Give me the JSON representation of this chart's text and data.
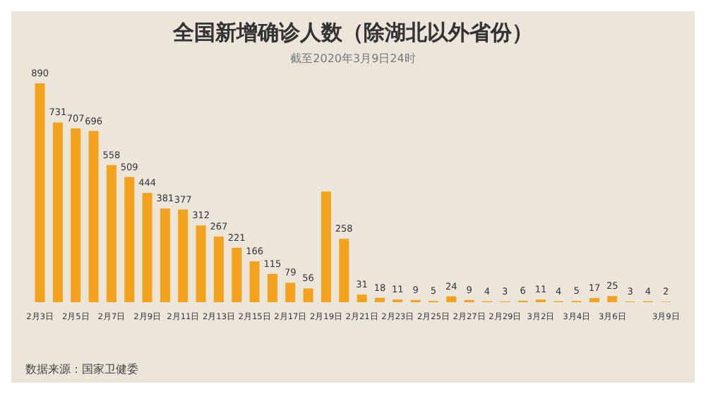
{
  "chart_data": {
    "type": "bar",
    "title": "全国新增确诊人数（除湖北以外省份）",
    "subtitle": "截至2020年3月9日24时",
    "categories": [
      "2月3日",
      null,
      "2月5日",
      null,
      "2月7日",
      null,
      "2月9日",
      null,
      "2月11日",
      null,
      "2月13日",
      null,
      "2月15日",
      null,
      "2月17日",
      null,
      "2月19日",
      null,
      "2月21日",
      null,
      "2月23日",
      null,
      "2月25日",
      null,
      "2月27日",
      null,
      "2月29日",
      null,
      "3月2日",
      null,
      "3月4日",
      null,
      "3月6日",
      null,
      null,
      "3月9日"
    ],
    "values": [
      890,
      731,
      707,
      696,
      558,
      509,
      444,
      381,
      377,
      312,
      267,
      221,
      166,
      115,
      79,
      56,
      450,
      258,
      31,
      18,
      11,
      9,
      5,
      24,
      9,
      4,
      3,
      6,
      11,
      4,
      5,
      17,
      25,
      3,
      4,
      2
    ],
    "value_labels": [
      "890",
      "731",
      "707",
      "696",
      "558",
      "509",
      "444",
      "381",
      "377",
      "312",
      "267",
      "221",
      "166",
      "115",
      "79",
      "56",
      null,
      "258",
      "31",
      "18",
      "11",
      "9",
      "5",
      "24",
      "9",
      "4",
      "3",
      "6",
      "11",
      "4",
      "5",
      "17",
      "25",
      "3",
      "4",
      "2"
    ],
    "color": "#f4a21c",
    "annotations": [
      "数据来源：国家卫健委"
    ]
  }
}
